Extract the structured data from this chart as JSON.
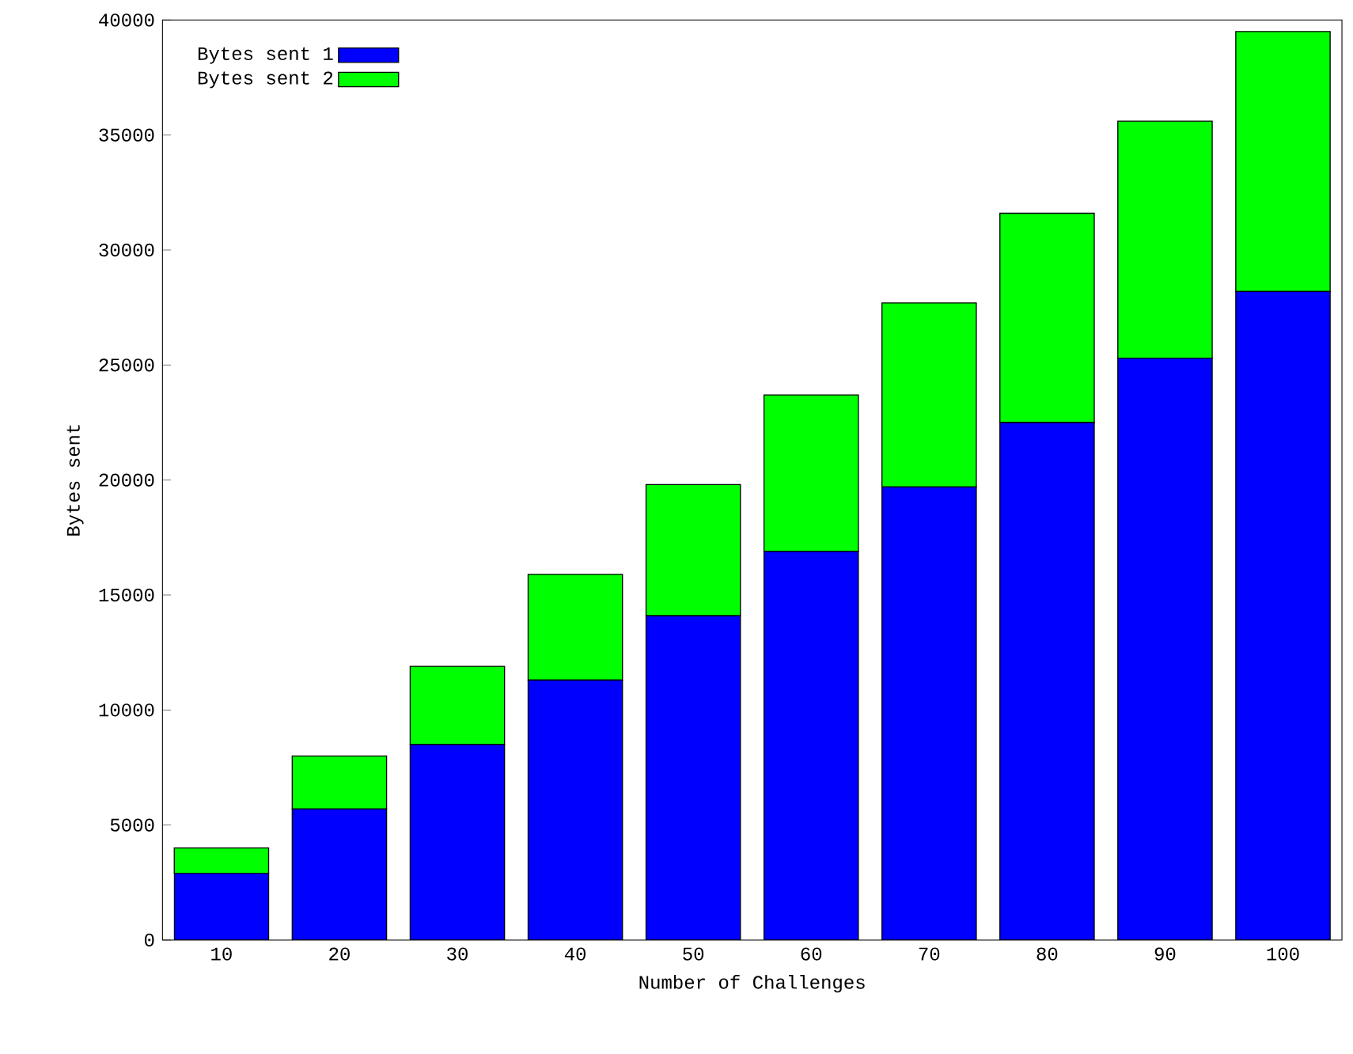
{
  "chart_data": {
    "type": "bar",
    "stacked": true,
    "xlabel": "Number of Challenges",
    "ylabel": "Bytes sent",
    "categories": [
      "10",
      "20",
      "30",
      "40",
      "50",
      "60",
      "70",
      "80",
      "90",
      "100"
    ],
    "series": [
      {
        "name": "Bytes sent 1",
        "color": "#0000ff",
        "values": [
          2900,
          5700,
          8500,
          11300,
          14100,
          16900,
          19700,
          22500,
          25300,
          28200
        ]
      },
      {
        "name": "Bytes sent 2",
        "color": "#00ff00",
        "values": [
          1100,
          2300,
          3400,
          4600,
          5700,
          6800,
          8000,
          9100,
          10300,
          11300
        ]
      }
    ],
    "ylim": [
      0,
      40000
    ],
    "yticks": [
      0,
      5000,
      10000,
      15000,
      20000,
      25000,
      30000,
      35000,
      40000
    ],
    "grid": false,
    "legend": "top left"
  }
}
